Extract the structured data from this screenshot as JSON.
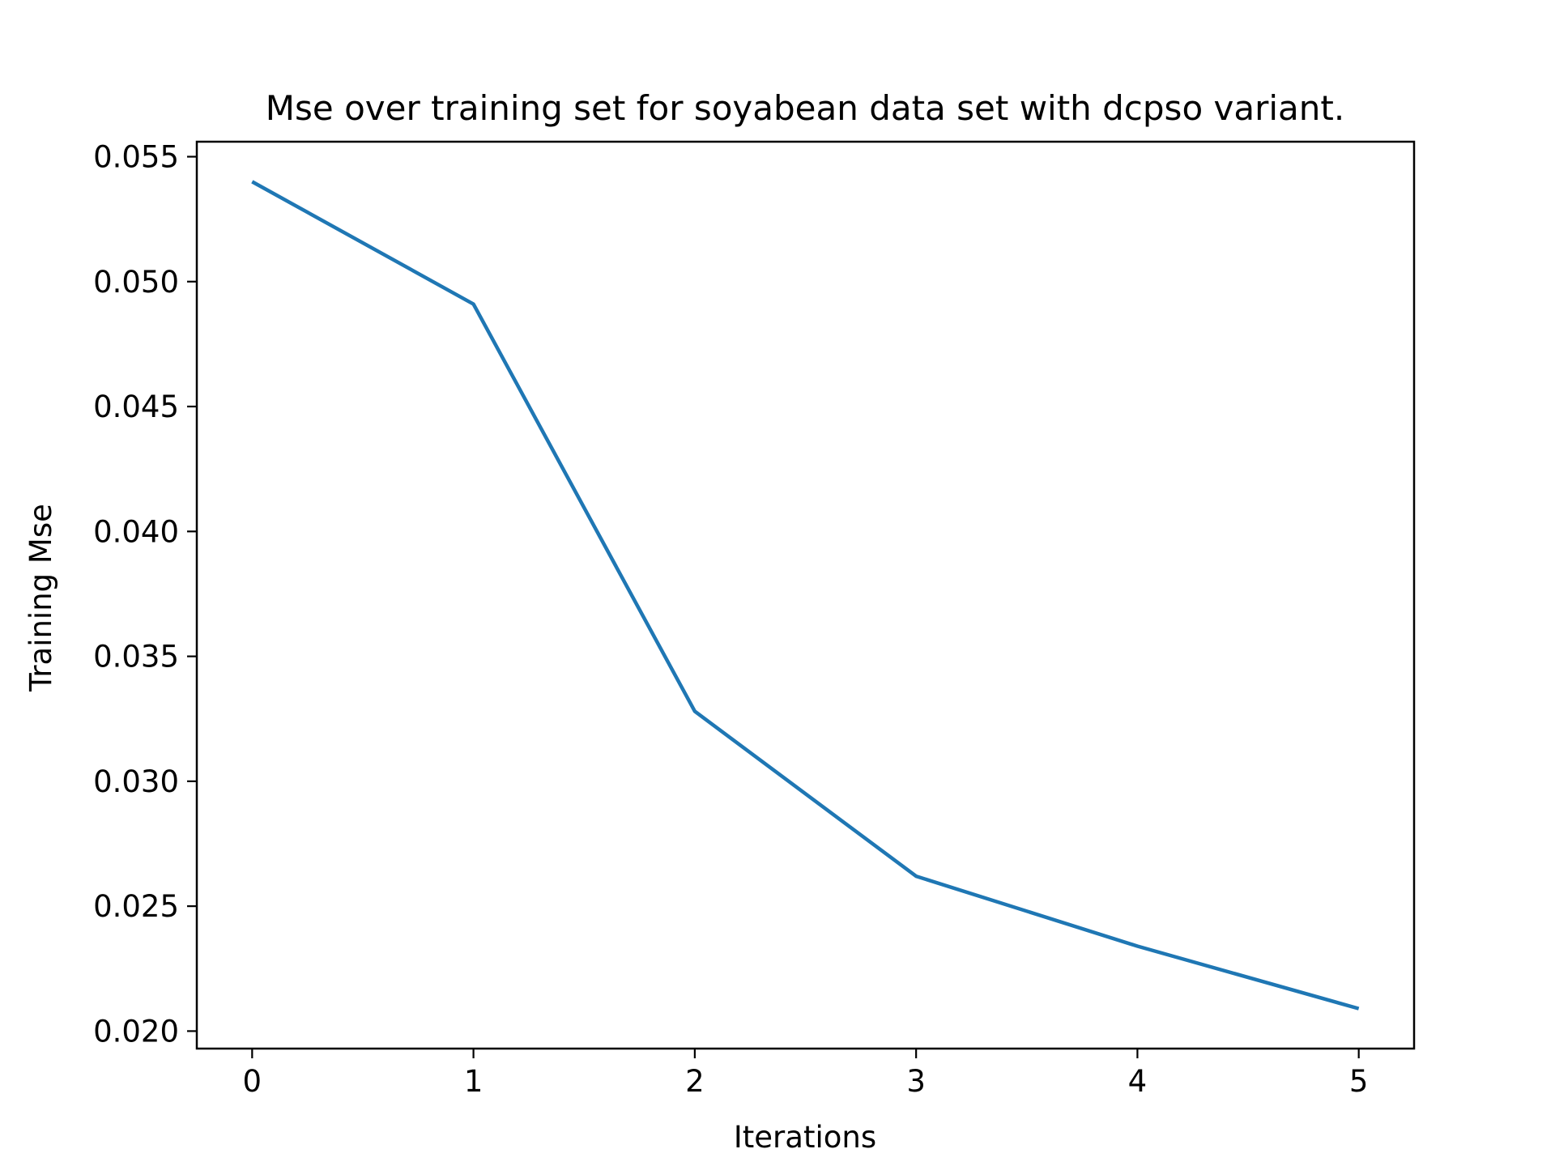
{
  "chart_data": {
    "type": "line",
    "title": "Mse over training set for soyabean data set with dcpso variant.",
    "xlabel": "Iterations",
    "ylabel": "Training Mse",
    "x": [
      0,
      1,
      2,
      3,
      4,
      5
    ],
    "series": [
      {
        "values": [
          0.054,
          0.0491,
          0.0328,
          0.0262,
          0.0234,
          0.0209
        ],
        "color": "#1f77b4"
      }
    ],
    "xlim": [
      -0.25,
      5.25
    ],
    "ylim": [
      0.0193,
      0.0556
    ],
    "xticks": [
      0,
      1,
      2,
      3,
      4,
      5
    ],
    "xtick_labels": [
      "0",
      "1",
      "2",
      "3",
      "4",
      "5"
    ],
    "yticks": [
      0.02,
      0.025,
      0.03,
      0.035,
      0.04,
      0.045,
      0.05,
      0.055
    ],
    "ytick_labels": [
      "0.020",
      "0.025",
      "0.030",
      "0.035",
      "0.040",
      "0.045",
      "0.050",
      "0.055"
    ],
    "grid": false,
    "legend": false
  }
}
